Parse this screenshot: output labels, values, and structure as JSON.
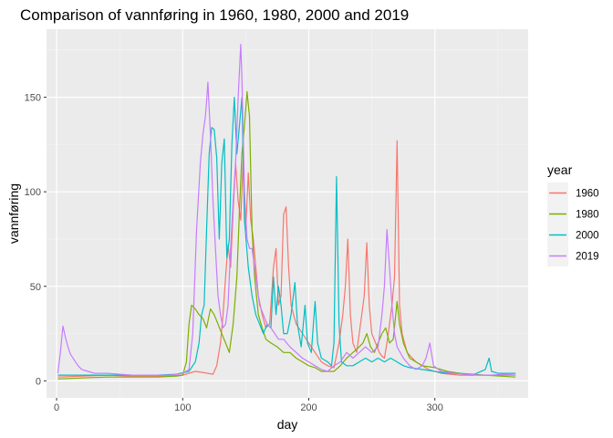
{
  "chart_data": {
    "type": "line",
    "title": "Comparison of vannføring in 1960, 1980, 2000 and 2019",
    "xlabel": "day",
    "ylabel": "vannføring",
    "xlim": [
      -8,
      374
    ],
    "ylim": [
      -9,
      186
    ],
    "x_ticks": [
      0,
      100,
      200,
      300
    ],
    "x_tick_labels": [
      "0",
      "100",
      "200",
      "300"
    ],
    "y_ticks": [
      0,
      50,
      100,
      150
    ],
    "y_tick_labels": [
      "0",
      "50",
      "100",
      "150"
    ],
    "grid": true,
    "legend_title": "year",
    "legend_position": "right",
    "series": [
      {
        "name": "1960",
        "color": "#F8766D",
        "points": [
          [
            1,
            2
          ],
          [
            20,
            2.5
          ],
          [
            40,
            3
          ],
          [
            60,
            2.5
          ],
          [
            80,
            2.5
          ],
          [
            100,
            3
          ],
          [
            110,
            5
          ],
          [
            115,
            4.5
          ],
          [
            120,
            4
          ],
          [
            124,
            3.5
          ],
          [
            127,
            8
          ],
          [
            130,
            20
          ],
          [
            132,
            35
          ],
          [
            134,
            55
          ],
          [
            136,
            72
          ],
          [
            138,
            60
          ],
          [
            140,
            90
          ],
          [
            142,
            115
          ],
          [
            144,
            95
          ],
          [
            146,
            85
          ],
          [
            148,
            118
          ],
          [
            150,
            80
          ],
          [
            152,
            110
          ],
          [
            154,
            85
          ],
          [
            156,
            75
          ],
          [
            158,
            60
          ],
          [
            160,
            45
          ],
          [
            163,
            35
          ],
          [
            166,
            28
          ],
          [
            169,
            30
          ],
          [
            172,
            60
          ],
          [
            174,
            70
          ],
          [
            176,
            40
          ],
          [
            178,
            45
          ],
          [
            180,
            88
          ],
          [
            182,
            92
          ],
          [
            184,
            60
          ],
          [
            186,
            40
          ],
          [
            190,
            30
          ],
          [
            195,
            25
          ],
          [
            200,
            20
          ],
          [
            205,
            15
          ],
          [
            210,
            10
          ],
          [
            215,
            8
          ],
          [
            220,
            7
          ],
          [
            224,
            20
          ],
          [
            227,
            35
          ],
          [
            229,
            50
          ],
          [
            231,
            75
          ],
          [
            233,
            35
          ],
          [
            235,
            20
          ],
          [
            238,
            15
          ],
          [
            241,
            30
          ],
          [
            244,
            45
          ],
          [
            246,
            73
          ],
          [
            248,
            40
          ],
          [
            250,
            25
          ],
          [
            253,
            20
          ],
          [
            256,
            15
          ],
          [
            258,
            13
          ],
          [
            260,
            12
          ],
          [
            262,
            20
          ],
          [
            264,
            30
          ],
          [
            266,
            40
          ],
          [
            268,
            55
          ],
          [
            270,
            127
          ],
          [
            272,
            40
          ],
          [
            274,
            25
          ],
          [
            278,
            15
          ],
          [
            285,
            10
          ],
          [
            295,
            6
          ],
          [
            305,
            4
          ],
          [
            320,
            3
          ],
          [
            340,
            3
          ],
          [
            364,
            3
          ]
        ]
      },
      {
        "name": "1980",
        "color": "#7CAE00",
        "points": [
          [
            1,
            1
          ],
          [
            20,
            1.5
          ],
          [
            40,
            2
          ],
          [
            60,
            2
          ],
          [
            80,
            2
          ],
          [
            95,
            2.5
          ],
          [
            100,
            3
          ],
          [
            103,
            10
          ],
          [
            105,
            30
          ],
          [
            107,
            40
          ],
          [
            110,
            38
          ],
          [
            113,
            35
          ],
          [
            116,
            33
          ],
          [
            119,
            28
          ],
          [
            122,
            38
          ],
          [
            125,
            35
          ],
          [
            128,
            30
          ],
          [
            131,
            25
          ],
          [
            134,
            20
          ],
          [
            137,
            15
          ],
          [
            140,
            30
          ],
          [
            143,
            55
          ],
          [
            145,
            90
          ],
          [
            147,
            120
          ],
          [
            149,
            135
          ],
          [
            151,
            153
          ],
          [
            153,
            140
          ],
          [
            155,
            80
          ],
          [
            157,
            55
          ],
          [
            160,
            35
          ],
          [
            163,
            28
          ],
          [
            166,
            22
          ],
          [
            170,
            20
          ],
          [
            175,
            18
          ],
          [
            180,
            15
          ],
          [
            185,
            15
          ],
          [
            190,
            12
          ],
          [
            195,
            10
          ],
          [
            200,
            8
          ],
          [
            205,
            7
          ],
          [
            210,
            5
          ],
          [
            215,
            5
          ],
          [
            220,
            5
          ],
          [
            225,
            8
          ],
          [
            230,
            12
          ],
          [
            235,
            15
          ],
          [
            240,
            18
          ],
          [
            243,
            20
          ],
          [
            246,
            25
          ],
          [
            249,
            18
          ],
          [
            252,
            15
          ],
          [
            255,
            20
          ],
          [
            258,
            25
          ],
          [
            261,
            28
          ],
          [
            264,
            20
          ],
          [
            267,
            22
          ],
          [
            270,
            42
          ],
          [
            272,
            30
          ],
          [
            275,
            20
          ],
          [
            280,
            12
          ],
          [
            285,
            10
          ],
          [
            290,
            8
          ],
          [
            300,
            7
          ],
          [
            310,
            5
          ],
          [
            320,
            4
          ],
          [
            340,
            3
          ],
          [
            364,
            2
          ]
        ]
      },
      {
        "name": "2000",
        "color": "#00BFC4",
        "points": [
          [
            1,
            3
          ],
          [
            20,
            3
          ],
          [
            40,
            3
          ],
          [
            60,
            3
          ],
          [
            80,
            3
          ],
          [
            95,
            3.5
          ],
          [
            105,
            5
          ],
          [
            110,
            10
          ],
          [
            113,
            20
          ],
          [
            115,
            35
          ],
          [
            117,
            40
          ],
          [
            119,
            80
          ],
          [
            121,
            120
          ],
          [
            123,
            134
          ],
          [
            125,
            133
          ],
          [
            127,
            118
          ],
          [
            129,
            75
          ],
          [
            131,
            115
          ],
          [
            133,
            128
          ],
          [
            135,
            65
          ],
          [
            137,
            75
          ],
          [
            139,
            125
          ],
          [
            141,
            150
          ],
          [
            143,
            120
          ],
          [
            145,
            135
          ],
          [
            147,
            150
          ],
          [
            149,
            85
          ],
          [
            152,
            60
          ],
          [
            155,
            45
          ],
          [
            158,
            35
          ],
          [
            161,
            30
          ],
          [
            164,
            25
          ],
          [
            167,
            30
          ],
          [
            170,
            28
          ],
          [
            172,
            55
          ],
          [
            174,
            35
          ],
          [
            176,
            50
          ],
          [
            178,
            40
          ],
          [
            180,
            25
          ],
          [
            183,
            25
          ],
          [
            186,
            35
          ],
          [
            189,
            52
          ],
          [
            191,
            30
          ],
          [
            194,
            18
          ],
          [
            197,
            40
          ],
          [
            199,
            20
          ],
          [
            202,
            15
          ],
          [
            205,
            42
          ],
          [
            207,
            20
          ],
          [
            210,
            12
          ],
          [
            215,
            10
          ],
          [
            218,
            8
          ],
          [
            220,
            20
          ],
          [
            222,
            108
          ],
          [
            224,
            30
          ],
          [
            226,
            10
          ],
          [
            230,
            8
          ],
          [
            235,
            8
          ],
          [
            240,
            10
          ],
          [
            245,
            12
          ],
          [
            250,
            10
          ],
          [
            255,
            12
          ],
          [
            260,
            10
          ],
          [
            265,
            12
          ],
          [
            270,
            10
          ],
          [
            275,
            8
          ],
          [
            280,
            7
          ],
          [
            290,
            6
          ],
          [
            300,
            5
          ],
          [
            310,
            4
          ],
          [
            320,
            4
          ],
          [
            330,
            3
          ],
          [
            340,
            6
          ],
          [
            343,
            12
          ],
          [
            345,
            5
          ],
          [
            350,
            4
          ],
          [
            364,
            4
          ]
        ]
      },
      {
        "name": "2019",
        "color": "#C77CFF",
        "points": [
          [
            1,
            4
          ],
          [
            3,
            15
          ],
          [
            5,
            29
          ],
          [
            7,
            23
          ],
          [
            9,
            18
          ],
          [
            11,
            14
          ],
          [
            14,
            11
          ],
          [
            17,
            8
          ],
          [
            20,
            6
          ],
          [
            25,
            5
          ],
          [
            30,
            4
          ],
          [
            40,
            4
          ],
          [
            50,
            3.5
          ],
          [
            60,
            3
          ],
          [
            70,
            3
          ],
          [
            80,
            3
          ],
          [
            90,
            3
          ],
          [
            100,
            4
          ],
          [
            105,
            6
          ],
          [
            108,
            25
          ],
          [
            111,
            80
          ],
          [
            114,
            115
          ],
          [
            116,
            130
          ],
          [
            118,
            140
          ],
          [
            119,
            148
          ],
          [
            120,
            158
          ],
          [
            122,
            130
          ],
          [
            124,
            95
          ],
          [
            126,
            70
          ],
          [
            128,
            45
          ],
          [
            130,
            35
          ],
          [
            132,
            28
          ],
          [
            134,
            30
          ],
          [
            136,
            40
          ],
          [
            138,
            70
          ],
          [
            140,
            95
          ],
          [
            142,
            115
          ],
          [
            144,
            150
          ],
          [
            146,
            178
          ],
          [
            147,
            160
          ],
          [
            149,
            100
          ],
          [
            151,
            75
          ],
          [
            153,
            70
          ],
          [
            155,
            70
          ],
          [
            157,
            60
          ],
          [
            159,
            50
          ],
          [
            161,
            40
          ],
          [
            164,
            35
          ],
          [
            167,
            30
          ],
          [
            170,
            28
          ],
          [
            173,
            25
          ],
          [
            176,
            22
          ],
          [
            180,
            22
          ],
          [
            185,
            18
          ],
          [
            190,
            15
          ],
          [
            195,
            12
          ],
          [
            200,
            10
          ],
          [
            205,
            8
          ],
          [
            210,
            6
          ],
          [
            215,
            5
          ],
          [
            220,
            8
          ],
          [
            225,
            10
          ],
          [
            230,
            15
          ],
          [
            235,
            12
          ],
          [
            240,
            15
          ],
          [
            245,
            18
          ],
          [
            250,
            15
          ],
          [
            255,
            18
          ],
          [
            258,
            35
          ],
          [
            260,
            50
          ],
          [
            262,
            80
          ],
          [
            264,
            60
          ],
          [
            266,
            40
          ],
          [
            268,
            25
          ],
          [
            270,
            18
          ],
          [
            275,
            12
          ],
          [
            280,
            8
          ],
          [
            285,
            6
          ],
          [
            290,
            8
          ],
          [
            293,
            12
          ],
          [
            296,
            20
          ],
          [
            299,
            8
          ],
          [
            305,
            5
          ],
          [
            315,
            4
          ],
          [
            325,
            3.5
          ],
          [
            335,
            3
          ],
          [
            345,
            3
          ],
          [
            355,
            3.5
          ],
          [
            364,
            3
          ]
        ]
      }
    ]
  }
}
